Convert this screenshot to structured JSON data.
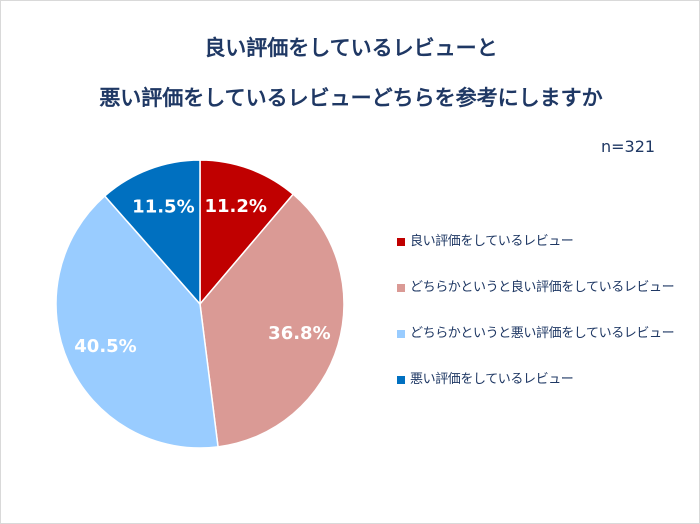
{
  "title": {
    "line1": "良い評価をしているレビューと",
    "line2": "悪い評価をしているレビューどちらを参考にしますか"
  },
  "sample_size": "n=321",
  "chart_data": {
    "type": "pie",
    "title": "良い評価をしているレビューと悪い評価をしているレビューどちらを参考にしますか",
    "start_angle_deg": 0,
    "direction": "clockwise",
    "legend_position": "right",
    "slices": [
      {
        "label": "良い評価をしているレビュー",
        "value": 11.2,
        "display": "11.2%",
        "color": "#c00000"
      },
      {
        "label": "どちらかというと良い評価をしているレビュー",
        "value": 36.8,
        "display": "36.8%",
        "color": "#da9a95"
      },
      {
        "label": "どちらかというと悪い評価をしているレビュー",
        "value": 40.5,
        "display": "40.5%",
        "color": "#99ccff"
      },
      {
        "label": "悪い評価をしているレビュー",
        "value": 11.5,
        "display": "11.5%",
        "color": "#0070c0"
      }
    ]
  },
  "legend": {
    "items": [
      {
        "label": "良い評価をしているレビュー",
        "color": "#c00000"
      },
      {
        "label": "どちらかというと良い評価をしているレビュー",
        "color": "#da9a95"
      },
      {
        "label": "どちらかというと悪い評価をしているレビュー",
        "color": "#99ccff"
      },
      {
        "label": "悪い評価をしているレビュー",
        "color": "#0070c0"
      }
    ]
  }
}
